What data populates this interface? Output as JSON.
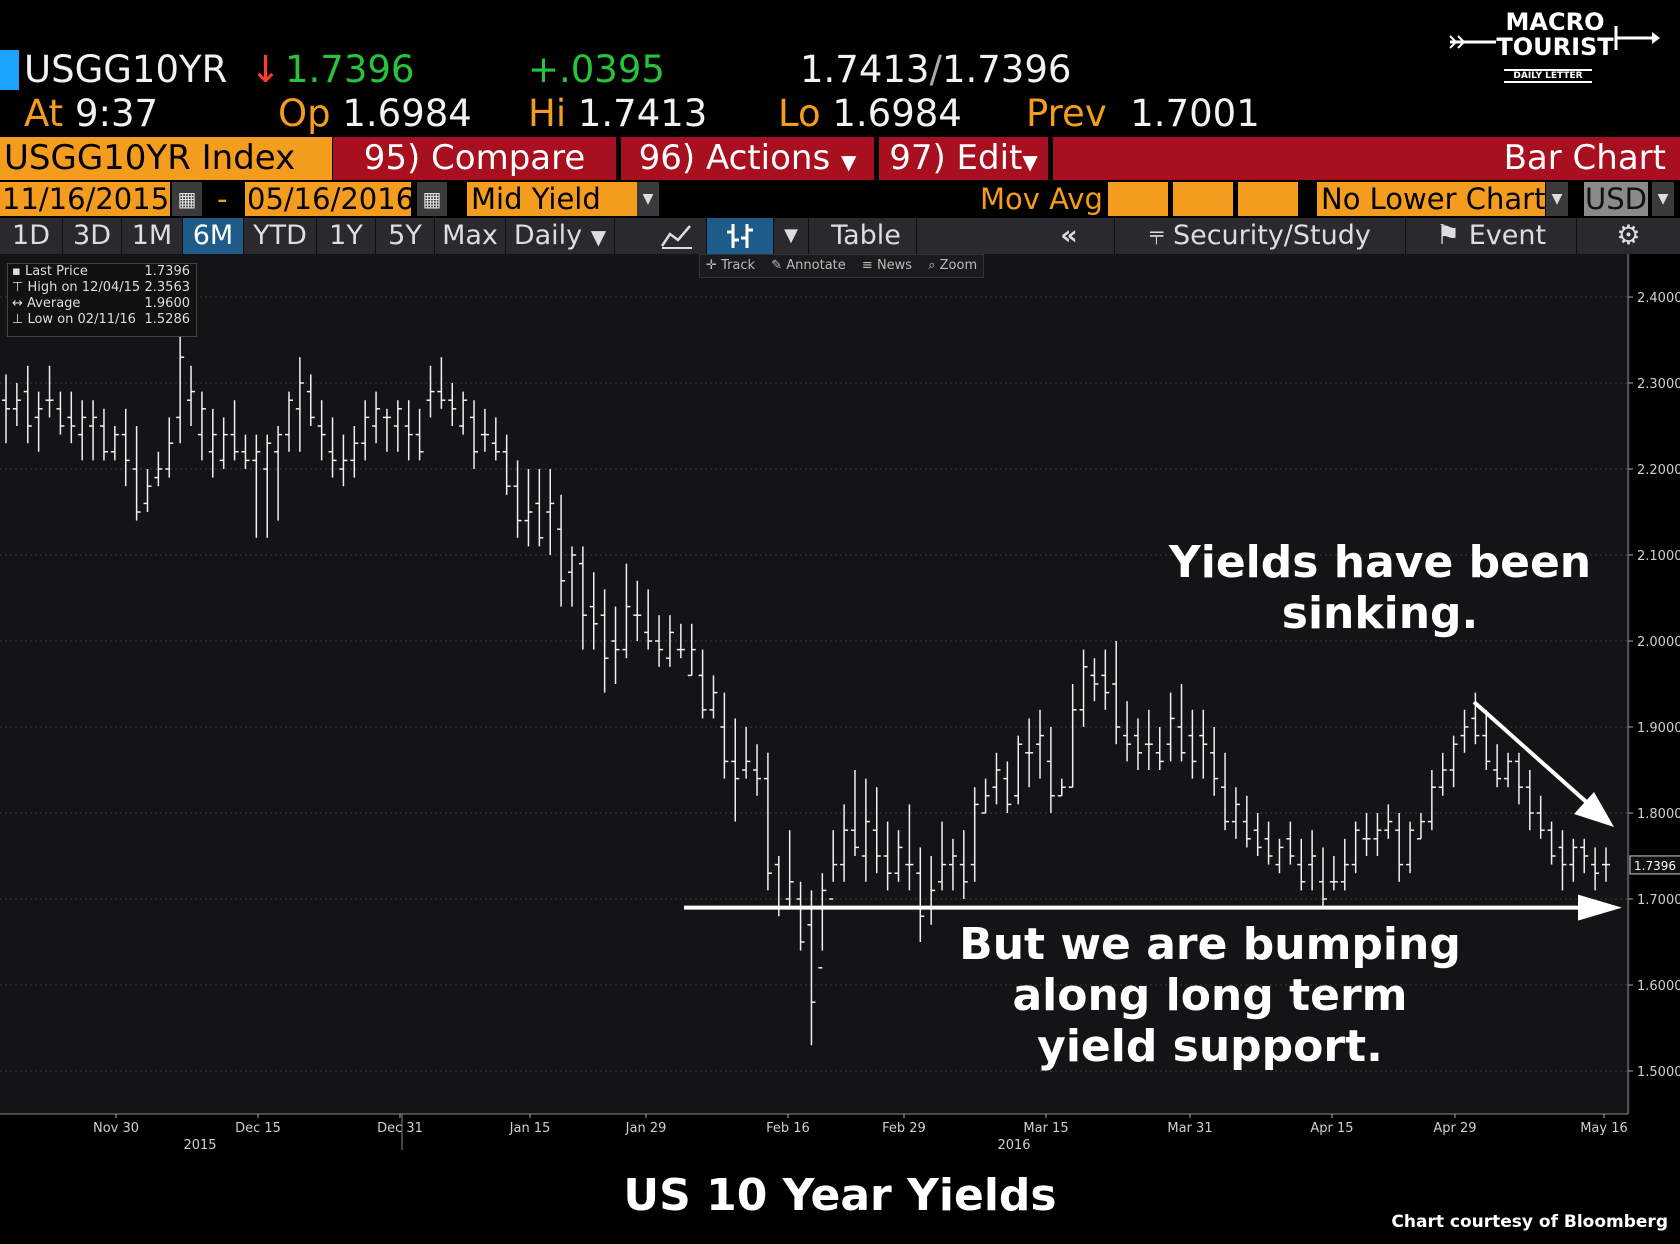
{
  "header": {
    "ticker": "USGG10YR",
    "last_arrow": "↓",
    "last": "1.7396",
    "change": "+.0395",
    "bid": "1.7413",
    "ask": "1.7396",
    "at_label": "At",
    "time": "9:37",
    "open_label": "Op",
    "open": "1.6984",
    "high_label": "Hi",
    "high": "1.7413",
    "low_label": "Lo",
    "low": "1.6984",
    "prev_label": "Prev",
    "prev": "1.7001"
  },
  "logo": {
    "line1": "MACRO",
    "line2": "TOURIST",
    "line3": "DAILY LETTER"
  },
  "toolbar": {
    "index_label": "USGG10YR Index",
    "compare": "95) Compare",
    "actions": "96) Actions",
    "edit": "97) Edit",
    "chart_type": "Bar Chart"
  },
  "range": {
    "start": "11/16/2015",
    "dash": "-",
    "end": "05/16/2016",
    "field": "Mid Yield",
    "mov_avg": "Mov Avg",
    "lower_chart": "No Lower Chart",
    "currency": "USD"
  },
  "periods": {
    "items": [
      "1D",
      "3D",
      "1M",
      "6M",
      "YTD",
      "1Y",
      "5Y",
      "Max"
    ],
    "selected": "6M",
    "frequency": "Daily",
    "table": "Table",
    "security_study": "Security/Study",
    "event": "Event"
  },
  "mini_toolbar": {
    "track": "Track",
    "annotate": "Annotate",
    "news": "News",
    "zoom": "Zoom"
  },
  "legend": [
    {
      "label": "Last Price",
      "value": "1.7396"
    },
    {
      "label": "High on 12/04/15",
      "value": "2.3563"
    },
    {
      "label": "Average",
      "value": "1.9600"
    },
    {
      "label": "Low on 02/11/16",
      "value": "1.5286"
    }
  ],
  "annotations": {
    "top_line1": "Yields have been",
    "top_line2": "sinking.",
    "bottom_line1": "But we are bumping",
    "bottom_line2": "along long term",
    "bottom_line3": "yield support."
  },
  "footer": {
    "title": "US 10 Year Yields",
    "credit": "Chart courtesy of Bloomberg"
  },
  "chart_data": {
    "type": "bar",
    "ohlc": true,
    "ylim": [
      1.45,
      2.45
    ],
    "y_ticks": [
      "1.5000",
      "1.6000",
      "1.7000",
      "1.8000",
      "1.9000",
      "2.0000",
      "2.1000",
      "2.2000",
      "2.3000",
      "2.4000"
    ],
    "last_price_label": "1.7396",
    "support_level": 1.69,
    "x_ticks": [
      "Nov 30",
      "Dec 15",
      "Dec 31",
      "Jan 15",
      "Jan 29",
      "Feb 16",
      "Feb 29",
      "Mar 15",
      "Mar 31",
      "Apr 15",
      "Apr 29",
      "May 16"
    ],
    "years": [
      "2015",
      "2016"
    ],
    "bars": [
      [
        2.28,
        2.31,
        2.23,
        2.27
      ],
      [
        2.27,
        2.3,
        2.25,
        2.28
      ],
      [
        2.29,
        2.32,
        2.23,
        2.25
      ],
      [
        2.26,
        2.29,
        2.22,
        2.27
      ],
      [
        2.28,
        2.32,
        2.26,
        2.28
      ],
      [
        2.27,
        2.29,
        2.24,
        2.25
      ],
      [
        2.26,
        2.29,
        2.23,
        2.25
      ],
      [
        2.24,
        2.28,
        2.21,
        2.26
      ],
      [
        2.25,
        2.28,
        2.21,
        2.26
      ],
      [
        2.25,
        2.27,
        2.21,
        2.22
      ],
      [
        2.22,
        2.25,
        2.21,
        2.24
      ],
      [
        2.24,
        2.27,
        2.18,
        2.21
      ],
      [
        2.2,
        2.25,
        2.14,
        2.15
      ],
      [
        2.16,
        2.2,
        2.15,
        2.18
      ],
      [
        2.19,
        2.22,
        2.18,
        2.2
      ],
      [
        2.2,
        2.26,
        2.19,
        2.23
      ],
      [
        2.26,
        2.36,
        2.23,
        2.33
      ],
      [
        2.28,
        2.32,
        2.25,
        2.29
      ],
      [
        2.24,
        2.29,
        2.21,
        2.27
      ],
      [
        2.22,
        2.27,
        2.19,
        2.24
      ],
      [
        2.21,
        2.26,
        2.2,
        2.24
      ],
      [
        2.24,
        2.28,
        2.21,
        2.22
      ],
      [
        2.22,
        2.24,
        2.2,
        2.21
      ],
      [
        2.21,
        2.24,
        2.12,
        2.22
      ],
      [
        2.2,
        2.24,
        2.12,
        2.23
      ],
      [
        2.22,
        2.25,
        2.14,
        2.24
      ],
      [
        2.24,
        2.29,
        2.22,
        2.28
      ],
      [
        2.27,
        2.33,
        2.22,
        2.3
      ],
      [
        2.29,
        2.31,
        2.25,
        2.26
      ],
      [
        2.25,
        2.28,
        2.21,
        2.24
      ],
      [
        2.22,
        2.26,
        2.19,
        2.21
      ],
      [
        2.2,
        2.24,
        2.18,
        2.21
      ],
      [
        2.21,
        2.25,
        2.19,
        2.23
      ],
      [
        2.23,
        2.28,
        2.21,
        2.26
      ],
      [
        2.25,
        2.29,
        2.23,
        2.27
      ],
      [
        2.26,
        2.27,
        2.22,
        2.26
      ],
      [
        2.25,
        2.28,
        2.22,
        2.27
      ],
      [
        2.25,
        2.28,
        2.21,
        2.24
      ],
      [
        2.24,
        2.27,
        2.21,
        2.22
      ],
      [
        2.28,
        2.32,
        2.26,
        2.29
      ],
      [
        2.29,
        2.33,
        2.27,
        2.28
      ],
      [
        2.28,
        2.3,
        2.25,
        2.27
      ],
      [
        2.25,
        2.29,
        2.24,
        2.28
      ],
      [
        2.26,
        2.28,
        2.2,
        2.22
      ],
      [
        2.24,
        2.27,
        2.22,
        2.24
      ],
      [
        2.23,
        2.26,
        2.21,
        2.22
      ],
      [
        2.22,
        2.24,
        2.17,
        2.18
      ],
      [
        2.18,
        2.21,
        2.12,
        2.14
      ],
      [
        2.14,
        2.2,
        2.11,
        2.15
      ],
      [
        2.16,
        2.2,
        2.11,
        2.12
      ],
      [
        2.15,
        2.2,
        2.1,
        2.16
      ],
      [
        2.13,
        2.17,
        2.04,
        2.07
      ],
      [
        2.08,
        2.11,
        2.04,
        2.1
      ],
      [
        2.09,
        2.11,
        1.99,
        2.03
      ],
      [
        2.04,
        2.08,
        1.99,
        2.02
      ],
      [
        2.03,
        2.06,
        1.94,
        1.98
      ],
      [
        2.0,
        2.04,
        1.95,
        1.99
      ],
      [
        1.99,
        2.09,
        1.98,
        2.04
      ],
      [
        2.03,
        2.07,
        2.0,
        2.03
      ],
      [
        2.01,
        2.06,
        1.99,
        2.0
      ],
      [
        2.0,
        2.03,
        1.97,
        1.99
      ],
      [
        1.98,
        2.03,
        1.97,
        2.01
      ],
      [
        1.99,
        2.02,
        1.98,
        1.99
      ],
      [
        1.96,
        2.02,
        1.96,
        1.99
      ],
      [
        1.96,
        1.99,
        1.91,
        1.92
      ],
      [
        1.92,
        1.96,
        1.91,
        1.94
      ],
      [
        1.9,
        1.94,
        1.84,
        1.86
      ],
      [
        1.86,
        1.91,
        1.79,
        1.84
      ],
      [
        1.85,
        1.9,
        1.84,
        1.86
      ],
      [
        1.85,
        1.88,
        1.82,
        1.84
      ],
      [
        1.84,
        1.87,
        1.71,
        1.73
      ],
      [
        1.74,
        1.75,
        1.68,
        1.69
      ],
      [
        1.7,
        1.78,
        1.69,
        1.72
      ],
      [
        1.7,
        1.72,
        1.64,
        1.65
      ],
      [
        1.67,
        1.71,
        1.53,
        1.58
      ],
      [
        1.62,
        1.73,
        1.64,
        1.71
      ],
      [
        1.7,
        1.78,
        1.72,
        1.74
      ],
      [
        1.74,
        1.81,
        1.72,
        1.78
      ],
      [
        1.78,
        1.85,
        1.75,
        1.76
      ],
      [
        1.75,
        1.84,
        1.72,
        1.79
      ],
      [
        1.78,
        1.83,
        1.73,
        1.75
      ],
      [
        1.75,
        1.79,
        1.71,
        1.73
      ],
      [
        1.73,
        1.78,
        1.72,
        1.76
      ],
      [
        1.74,
        1.81,
        1.71,
        1.74
      ],
      [
        1.73,
        1.76,
        1.65,
        1.68
      ],
      [
        1.69,
        1.75,
        1.67,
        1.71
      ],
      [
        1.72,
        1.79,
        1.71,
        1.74
      ],
      [
        1.74,
        1.77,
        1.71,
        1.75
      ],
      [
        1.74,
        1.78,
        1.7,
        1.72
      ],
      [
        1.74,
        1.83,
        1.72,
        1.81
      ],
      [
        1.8,
        1.84,
        1.8,
        1.82
      ],
      [
        1.83,
        1.87,
        1.81,
        1.85
      ],
      [
        1.84,
        1.86,
        1.8,
        1.81
      ],
      [
        1.82,
        1.89,
        1.81,
        1.88
      ],
      [
        1.87,
        1.91,
        1.83,
        1.87
      ],
      [
        1.88,
        1.92,
        1.84,
        1.89
      ],
      [
        1.86,
        1.9,
        1.8,
        1.82
      ],
      [
        1.82,
        1.84,
        1.82,
        1.83
      ],
      [
        1.83,
        1.95,
        1.83,
        1.92
      ],
      [
        1.92,
        1.99,
        1.9,
        1.97
      ],
      [
        1.96,
        1.98,
        1.93,
        1.95
      ],
      [
        1.96,
        1.99,
        1.92,
        1.94
      ],
      [
        1.95,
        2.0,
        1.88,
        1.9
      ],
      [
        1.89,
        1.93,
        1.86,
        1.88
      ],
      [
        1.89,
        1.91,
        1.85,
        1.87
      ],
      [
        1.88,
        1.92,
        1.85,
        1.88
      ],
      [
        1.87,
        1.9,
        1.85,
        1.86
      ],
      [
        1.88,
        1.94,
        1.86,
        1.91
      ],
      [
        1.9,
        1.95,
        1.86,
        1.87
      ],
      [
        1.89,
        1.92,
        1.84,
        1.86
      ],
      [
        1.89,
        1.92,
        1.84,
        1.88
      ],
      [
        1.87,
        1.9,
        1.82,
        1.84
      ],
      [
        1.83,
        1.87,
        1.78,
        1.79
      ],
      [
        1.79,
        1.83,
        1.77,
        1.81
      ],
      [
        1.79,
        1.82,
        1.76,
        1.77
      ],
      [
        1.78,
        1.8,
        1.75,
        1.76
      ],
      [
        1.77,
        1.79,
        1.74,
        1.75
      ],
      [
        1.74,
        1.77,
        1.73,
        1.76
      ],
      [
        1.77,
        1.79,
        1.74,
        1.75
      ],
      [
        1.74,
        1.77,
        1.71,
        1.72
      ],
      [
        1.74,
        1.78,
        1.71,
        1.75
      ],
      [
        1.72,
        1.76,
        1.69,
        1.7
      ],
      [
        1.72,
        1.75,
        1.71,
        1.72
      ],
      [
        1.72,
        1.77,
        1.71,
        1.74
      ],
      [
        1.74,
        1.79,
        1.73,
        1.78
      ],
      [
        1.77,
        1.8,
        1.75,
        1.77
      ],
      [
        1.77,
        1.8,
        1.75,
        1.78
      ],
      [
        1.78,
        1.81,
        1.77,
        1.79
      ],
      [
        1.78,
        1.8,
        1.72,
        1.74
      ],
      [
        1.74,
        1.79,
        1.73,
        1.78
      ],
      [
        1.77,
        1.8,
        1.77,
        1.79
      ],
      [
        1.79,
        1.85,
        1.78,
        1.83
      ],
      [
        1.83,
        1.87,
        1.82,
        1.85
      ],
      [
        1.85,
        1.89,
        1.83,
        1.88
      ],
      [
        1.89,
        1.92,
        1.87,
        1.9
      ],
      [
        1.91,
        1.94,
        1.88,
        1.89
      ],
      [
        1.89,
        1.92,
        1.85,
        1.86
      ],
      [
        1.85,
        1.88,
        1.83,
        1.84
      ],
      [
        1.84,
        1.87,
        1.83,
        1.86
      ],
      [
        1.86,
        1.87,
        1.81,
        1.83
      ],
      [
        1.83,
        1.85,
        1.78,
        1.8
      ],
      [
        1.8,
        1.82,
        1.77,
        1.78
      ],
      [
        1.78,
        1.79,
        1.74,
        1.75
      ],
      [
        1.76,
        1.78,
        1.71,
        1.74
      ],
      [
        1.74,
        1.77,
        1.72,
        1.76
      ],
      [
        1.76,
        1.77,
        1.73,
        1.75
      ],
      [
        1.74,
        1.76,
        1.71,
        1.73
      ],
      [
        1.74,
        1.76,
        1.72,
        1.74
      ]
    ]
  }
}
